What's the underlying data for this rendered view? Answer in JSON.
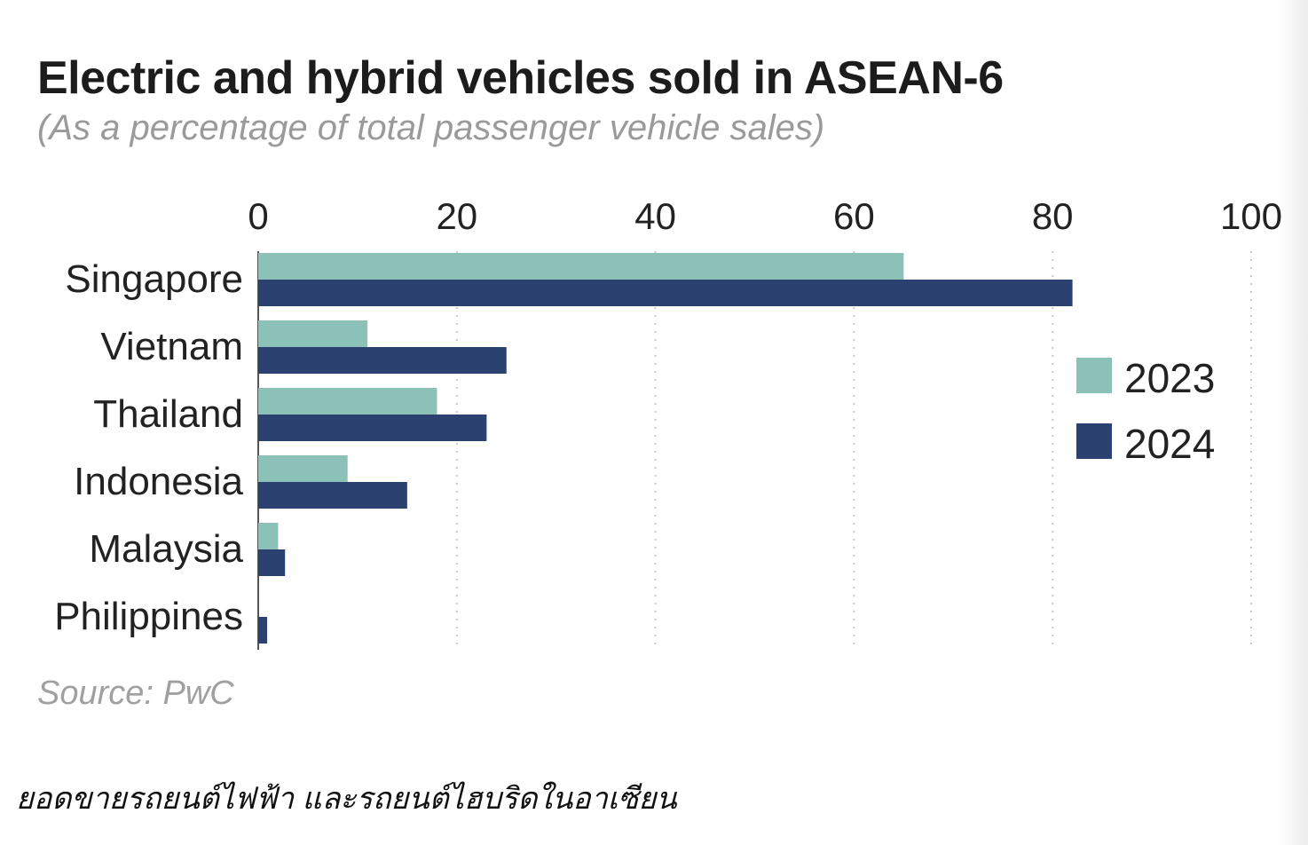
{
  "title": "Electric and hybrid vehicles sold in ASEAN-6",
  "subtitle": "(As a percentage of total passenger vehicle sales)",
  "source": "Source: PwC",
  "caption": "ยอดขายรถยนต์ไฟฟ้า และรถยนต์ไฮบริดในอาเซียน",
  "colors": {
    "series_2023": "#8cc1b8",
    "series_2024": "#2b416f",
    "grid": "#c8c8c8",
    "axis": "#555555",
    "text": "#222222"
  },
  "chart_data": {
    "type": "bar",
    "orientation": "horizontal",
    "title": "Electric and hybrid vehicles sold in ASEAN-6",
    "subtitle": "(As a percentage of total passenger vehicle sales)",
    "categories": [
      "Singapore",
      "Vietnam",
      "Thailand",
      "Indonesia",
      "Malaysia",
      "Philippines"
    ],
    "series": [
      {
        "name": "2023",
        "values": [
          65,
          11,
          18,
          9,
          2,
          0
        ]
      },
      {
        "name": "2024",
        "values": [
          82,
          25,
          23,
          15,
          2.7,
          0.9
        ]
      }
    ],
    "xlim": [
      0,
      100
    ],
    "xticks": [
      0,
      20,
      40,
      60,
      80,
      100
    ],
    "xlabel": "",
    "ylabel": "",
    "grid": "vertical dotted",
    "axis_position": "top",
    "legend": "right"
  }
}
